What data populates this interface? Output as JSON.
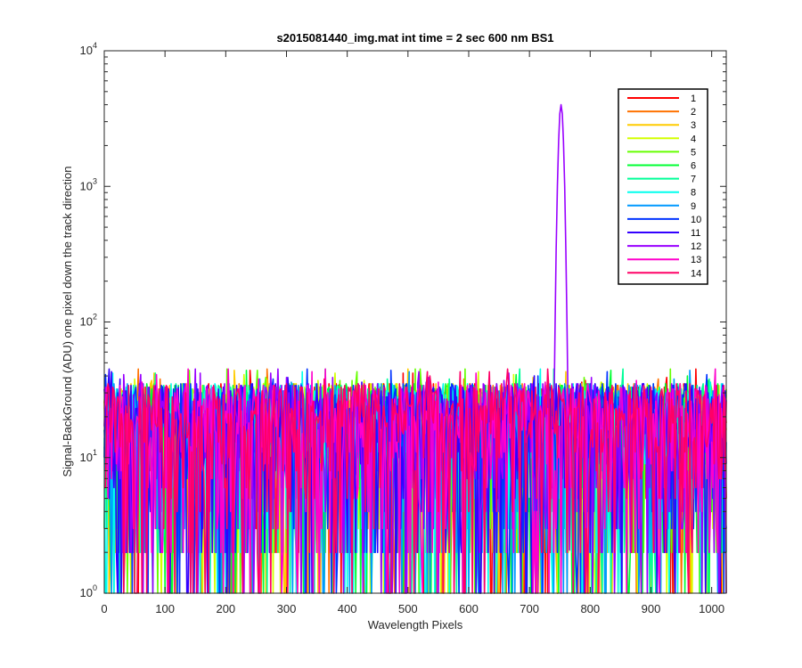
{
  "chart_data": {
    "type": "line",
    "title": "s2015081440_img.mat int time = 2 sec  600 nm BS1",
    "xlabel": "Wavelength Pixels",
    "ylabel": "Signal-BackGround (ADU) one pixel down the track direction",
    "xlim": [
      0,
      1024
    ],
    "ylim": [
      1,
      10000
    ],
    "yscale": "log",
    "grid": false,
    "legend_position": "top-right",
    "x_ticks": [
      "0",
      "100",
      "200",
      "300",
      "400",
      "500",
      "600",
      "700",
      "800",
      "900",
      "1000"
    ],
    "y_ticks": [
      {
        "base": "10",
        "exp": "0"
      },
      {
        "base": "10",
        "exp": "1"
      },
      {
        "base": "10",
        "exp": "2"
      },
      {
        "base": "10",
        "exp": "3"
      },
      {
        "base": "10",
        "exp": "4"
      }
    ],
    "noise_floor_range": [
      1,
      45
    ],
    "peak": {
      "x": 752,
      "y": 4000,
      "series": "12"
    },
    "series": [
      {
        "name": "1",
        "color": "#ff0000"
      },
      {
        "name": "2",
        "color": "#ff7200"
      },
      {
        "name": "3",
        "color": "#ffcc00"
      },
      {
        "name": "4",
        "color": "#d4ff00"
      },
      {
        "name": "5",
        "color": "#66ff00"
      },
      {
        "name": "6",
        "color": "#00ff33"
      },
      {
        "name": "7",
        "color": "#00ff99"
      },
      {
        "name": "8",
        "color": "#00ffee"
      },
      {
        "name": "9",
        "color": "#0099ff"
      },
      {
        "name": "10",
        "color": "#0033ff"
      },
      {
        "name": "11",
        "color": "#3300ff"
      },
      {
        "name": "12",
        "color": "#9900ff"
      },
      {
        "name": "13",
        "color": "#ff00cc"
      },
      {
        "name": "14",
        "color": "#ff0066"
      }
    ]
  }
}
